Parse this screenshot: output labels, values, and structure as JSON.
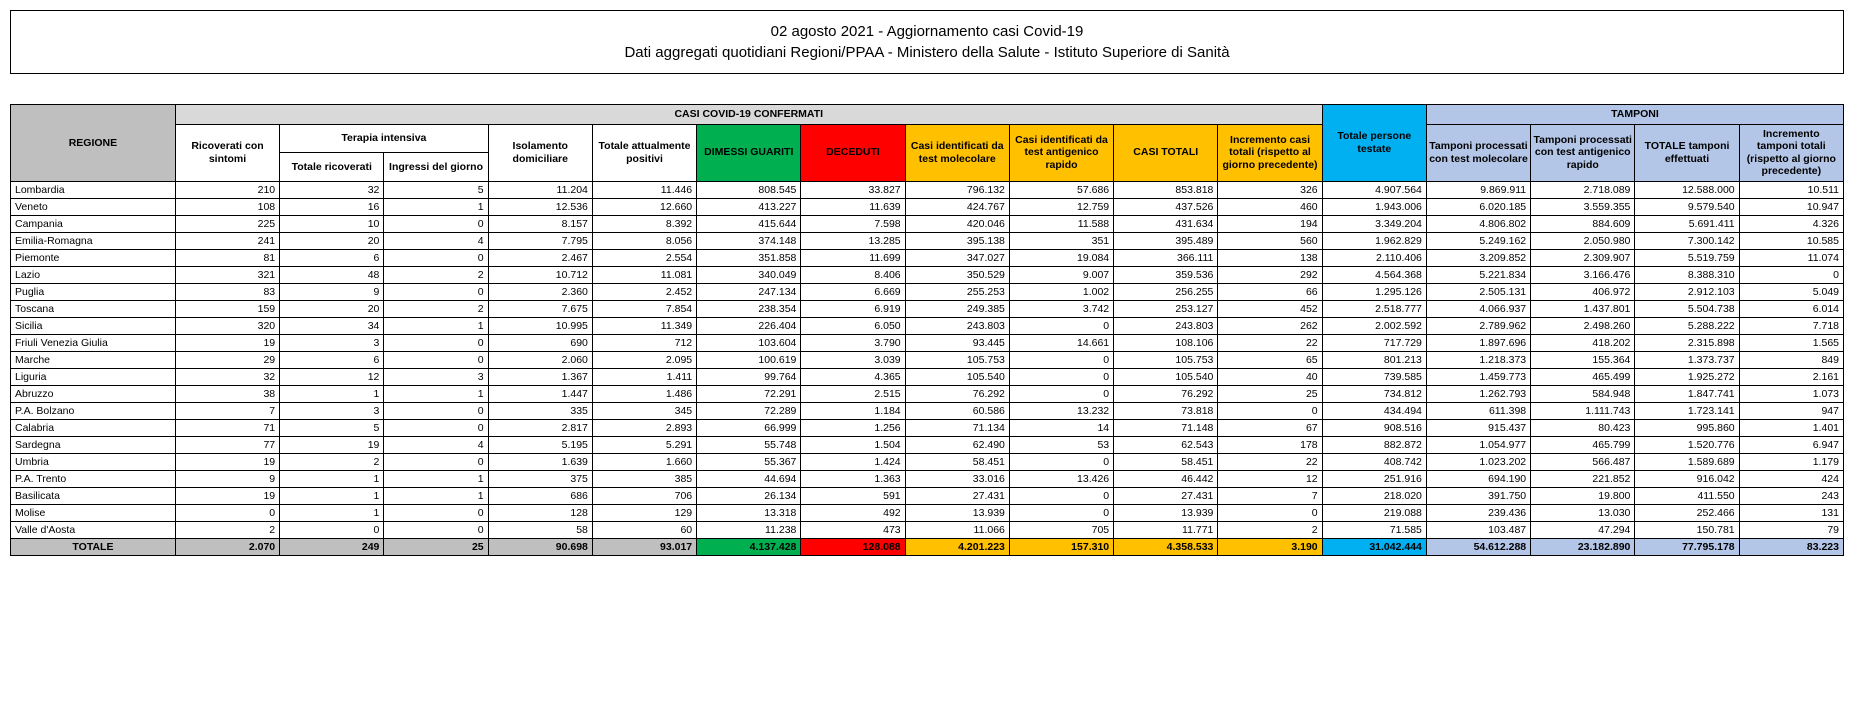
{
  "header": {
    "title": "02 agosto 2021 - Aggiornamento casi Covid-19",
    "subtitle": "Dati aggregati quotidiani Regioni/PPAA - Ministero della Salute - Istituto Superiore di Sanità"
  },
  "columns": {
    "region": "REGIONE",
    "group_confirmed": "CASI COVID-19 CONFERMATI",
    "group_ti": "Terapia intensiva",
    "ricoverati": "Ricoverati con sintomi",
    "ti_totale": "Totale ricoverati",
    "ti_ingressi": "Ingressi del giorno",
    "isolamento": "Isolamento domiciliare",
    "tot_positivi": "Totale attualmente positivi",
    "dimessi": "DIMESSI GUARITI",
    "deceduti": "DECEDUTI",
    "casi_mol": "Casi identificati da test molecolare",
    "casi_ant": "Casi identificati da test antigenico rapido",
    "casi_tot": "CASI TOTALI",
    "incr_casi": "Incremento casi totali (rispetto al giorno precedente)",
    "persone_testate": "Totale persone testate",
    "group_tamponi": "TAMPONI",
    "tamp_mol": "Tamponi processati con test molecolare",
    "tamp_ant": "Tamponi processati con test antigenico rapido",
    "tamp_tot": "TOTALE tamponi effettuati",
    "incr_tamp": "Incremento tamponi totali (rispetto al giorno precedente)"
  },
  "rows": [
    {
      "region": "Lombardia",
      "v": [
        "210",
        "32",
        "5",
        "11.204",
        "11.446",
        "808.545",
        "33.827",
        "796.132",
        "57.686",
        "853.818",
        "326",
        "4.907.564",
        "9.869.911",
        "2.718.089",
        "12.588.000",
        "10.511"
      ]
    },
    {
      "region": "Veneto",
      "v": [
        "108",
        "16",
        "1",
        "12.536",
        "12.660",
        "413.227",
        "11.639",
        "424.767",
        "12.759",
        "437.526",
        "460",
        "1.943.006",
        "6.020.185",
        "3.559.355",
        "9.579.540",
        "10.947"
      ]
    },
    {
      "region": "Campania",
      "v": [
        "225",
        "10",
        "0",
        "8.157",
        "8.392",
        "415.644",
        "7.598",
        "420.046",
        "11.588",
        "431.634",
        "194",
        "3.349.204",
        "4.806.802",
        "884.609",
        "5.691.411",
        "4.326"
      ]
    },
    {
      "region": "Emilia-Romagna",
      "v": [
        "241",
        "20",
        "4",
        "7.795",
        "8.056",
        "374.148",
        "13.285",
        "395.138",
        "351",
        "395.489",
        "560",
        "1.962.829",
        "5.249.162",
        "2.050.980",
        "7.300.142",
        "10.585"
      ]
    },
    {
      "region": "Piemonte",
      "v": [
        "81",
        "6",
        "0",
        "2.467",
        "2.554",
        "351.858",
        "11.699",
        "347.027",
        "19.084",
        "366.111",
        "138",
        "2.110.406",
        "3.209.852",
        "2.309.907",
        "5.519.759",
        "11.074"
      ]
    },
    {
      "region": "Lazio",
      "v": [
        "321",
        "48",
        "2",
        "10.712",
        "11.081",
        "340.049",
        "8.406",
        "350.529",
        "9.007",
        "359.536",
        "292",
        "4.564.368",
        "5.221.834",
        "3.166.476",
        "8.388.310",
        "0"
      ]
    },
    {
      "region": "Puglia",
      "v": [
        "83",
        "9",
        "0",
        "2.360",
        "2.452",
        "247.134",
        "6.669",
        "255.253",
        "1.002",
        "256.255",
        "66",
        "1.295.126",
        "2.505.131",
        "406.972",
        "2.912.103",
        "5.049"
      ]
    },
    {
      "region": "Toscana",
      "v": [
        "159",
        "20",
        "2",
        "7.675",
        "7.854",
        "238.354",
        "6.919",
        "249.385",
        "3.742",
        "253.127",
        "452",
        "2.518.777",
        "4.066.937",
        "1.437.801",
        "5.504.738",
        "6.014"
      ]
    },
    {
      "region": "Sicilia",
      "v": [
        "320",
        "34",
        "1",
        "10.995",
        "11.349",
        "226.404",
        "6.050",
        "243.803",
        "0",
        "243.803",
        "262",
        "2.002.592",
        "2.789.962",
        "2.498.260",
        "5.288.222",
        "7.718"
      ]
    },
    {
      "region": "Friuli Venezia Giulia",
      "v": [
        "19",
        "3",
        "0",
        "690",
        "712",
        "103.604",
        "3.790",
        "93.445",
        "14.661",
        "108.106",
        "22",
        "717.729",
        "1.897.696",
        "418.202",
        "2.315.898",
        "1.565"
      ]
    },
    {
      "region": "Marche",
      "v": [
        "29",
        "6",
        "0",
        "2.060",
        "2.095",
        "100.619",
        "3.039",
        "105.753",
        "0",
        "105.753",
        "65",
        "801.213",
        "1.218.373",
        "155.364",
        "1.373.737",
        "849"
      ]
    },
    {
      "region": "Liguria",
      "v": [
        "32",
        "12",
        "3",
        "1.367",
        "1.411",
        "99.764",
        "4.365",
        "105.540",
        "0",
        "105.540",
        "40",
        "739.585",
        "1.459.773",
        "465.499",
        "1.925.272",
        "2.161"
      ]
    },
    {
      "region": "Abruzzo",
      "v": [
        "38",
        "1",
        "1",
        "1.447",
        "1.486",
        "72.291",
        "2.515",
        "76.292",
        "0",
        "76.292",
        "25",
        "734.812",
        "1.262.793",
        "584.948",
        "1.847.741",
        "1.073"
      ]
    },
    {
      "region": "P.A. Bolzano",
      "v": [
        "7",
        "3",
        "0",
        "335",
        "345",
        "72.289",
        "1.184",
        "60.586",
        "13.232",
        "73.818",
        "0",
        "434.494",
        "611.398",
        "1.111.743",
        "1.723.141",
        "947"
      ]
    },
    {
      "region": "Calabria",
      "v": [
        "71",
        "5",
        "0",
        "2.817",
        "2.893",
        "66.999",
        "1.256",
        "71.134",
        "14",
        "71.148",
        "67",
        "908.516",
        "915.437",
        "80.423",
        "995.860",
        "1.401"
      ]
    },
    {
      "region": "Sardegna",
      "v": [
        "77",
        "19",
        "4",
        "5.195",
        "5.291",
        "55.748",
        "1.504",
        "62.490",
        "53",
        "62.543",
        "178",
        "882.872",
        "1.054.977",
        "465.799",
        "1.520.776",
        "6.947"
      ]
    },
    {
      "region": "Umbria",
      "v": [
        "19",
        "2",
        "0",
        "1.639",
        "1.660",
        "55.367",
        "1.424",
        "58.451",
        "0",
        "58.451",
        "22",
        "408.742",
        "1.023.202",
        "566.487",
        "1.589.689",
        "1.179"
      ]
    },
    {
      "region": "P.A. Trento",
      "v": [
        "9",
        "1",
        "1",
        "375",
        "385",
        "44.694",
        "1.363",
        "33.016",
        "13.426",
        "46.442",
        "12",
        "251.916",
        "694.190",
        "221.852",
        "916.042",
        "424"
      ]
    },
    {
      "region": "Basilicata",
      "v": [
        "19",
        "1",
        "1",
        "686",
        "706",
        "26.134",
        "591",
        "27.431",
        "0",
        "27.431",
        "7",
        "218.020",
        "391.750",
        "19.800",
        "411.550",
        "243"
      ]
    },
    {
      "region": "Molise",
      "v": [
        "0",
        "1",
        "0",
        "128",
        "129",
        "13.318",
        "492",
        "13.939",
        "0",
        "13.939",
        "0",
        "219.088",
        "239.436",
        "13.030",
        "252.466",
        "131"
      ]
    },
    {
      "region": "Valle d'Aosta",
      "v": [
        "2",
        "0",
        "0",
        "58",
        "60",
        "11.238",
        "473",
        "11.066",
        "705",
        "11.771",
        "2",
        "71.585",
        "103.487",
        "47.294",
        "150.781",
        "79"
      ]
    }
  ],
  "total": {
    "label": "TOTALE",
    "v": [
      "2.070",
      "249",
      "25",
      "90.698",
      "93.017",
      "4.137.428",
      "128.088",
      "4.201.223",
      "157.310",
      "4.358.533",
      "3.190",
      "31.042.444",
      "54.612.288",
      "23.182.890",
      "77.795.178",
      "83.223"
    ]
  },
  "colors": {
    "gray": "#bfbfbf",
    "green": "#00b050",
    "red": "#ff0000",
    "yellow": "#ffc000",
    "cyan": "#00b0f0",
    "lblue": "#b4c6e7"
  }
}
